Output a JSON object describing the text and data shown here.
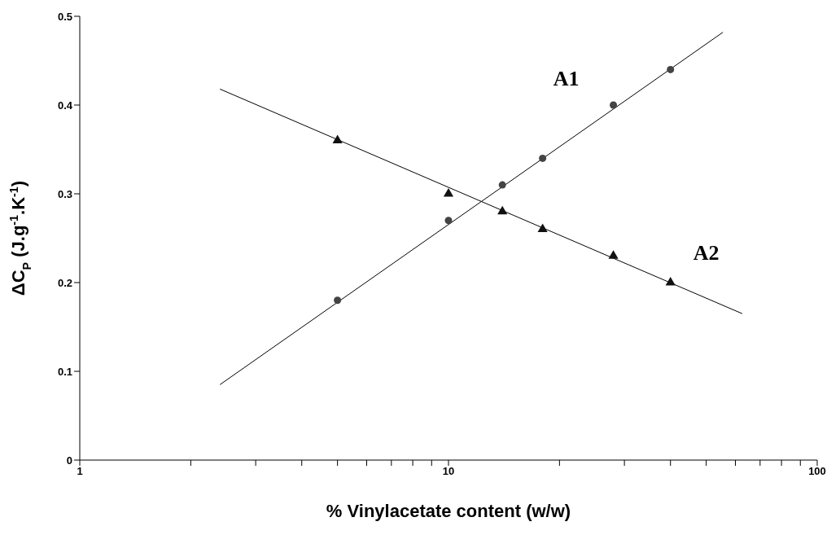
{
  "chart_data": {
    "type": "scatter",
    "xlabel": "% Vinylacetate content (w/w)",
    "ylabel": "ΔC$_{P}$ (J.g$^{-1}$.K$^{-1}$)",
    "log": "x",
    "xlim": [
      1,
      100
    ],
    "xticks": [
      1,
      {
        "value": 2,
        "label": null
      },
      {
        "value": 3,
        "label": null
      },
      {
        "value": 4,
        "label": null
      },
      {
        "value": 5,
        "label": null
      },
      {
        "value": 6,
        "label": null
      },
      {
        "value": 7,
        "label": null
      },
      {
        "value": 8,
        "label": null
      },
      {
        "value": 9,
        "label": null
      },
      10,
      {
        "value": 20,
        "label": null
      },
      {
        "value": 30,
        "label": null
      },
      {
        "value": 40,
        "label": null
      },
      {
        "value": 50,
        "label": null
      },
      {
        "value": 60,
        "label": null
      },
      {
        "value": 70,
        "label": null
      },
      {
        "value": 80,
        "label": null
      },
      {
        "value": 90,
        "label": null
      },
      100
    ],
    "ylim": [
      0,
      0.5
    ],
    "yticks": [
      0,
      0.1,
      0.2,
      0.3,
      0.4,
      0.5
    ],
    "series": [
      {
        "name": "A1",
        "color": "#444444",
        "marker": "circle",
        "x": [
          5,
          10,
          14,
          18,
          28,
          40
        ],
        "values": [
          0.18,
          0.27,
          0.31,
          0.34,
          0.4,
          0.44
        ]
      },
      {
        "name": "A2",
        "color": "#111111",
        "marker": "triangle",
        "x": [
          5,
          10,
          14,
          18,
          28,
          40
        ],
        "values": [
          0.36,
          0.3,
          0.28,
          0.26,
          0.23,
          0.2
        ]
      },
      {
        "type": "line",
        "color": "#000000",
        "marker": "none",
        "line_style": "solid",
        "x": [
          2.4,
          55.5
        ],
        "values": [
          0.085,
          0.482
        ]
      },
      {
        "type": "line",
        "color": "#000000",
        "marker": "none",
        "line_style": "solid",
        "x": [
          2.4,
          62.6
        ],
        "values": [
          0.418,
          0.165
        ]
      }
    ]
  }
}
